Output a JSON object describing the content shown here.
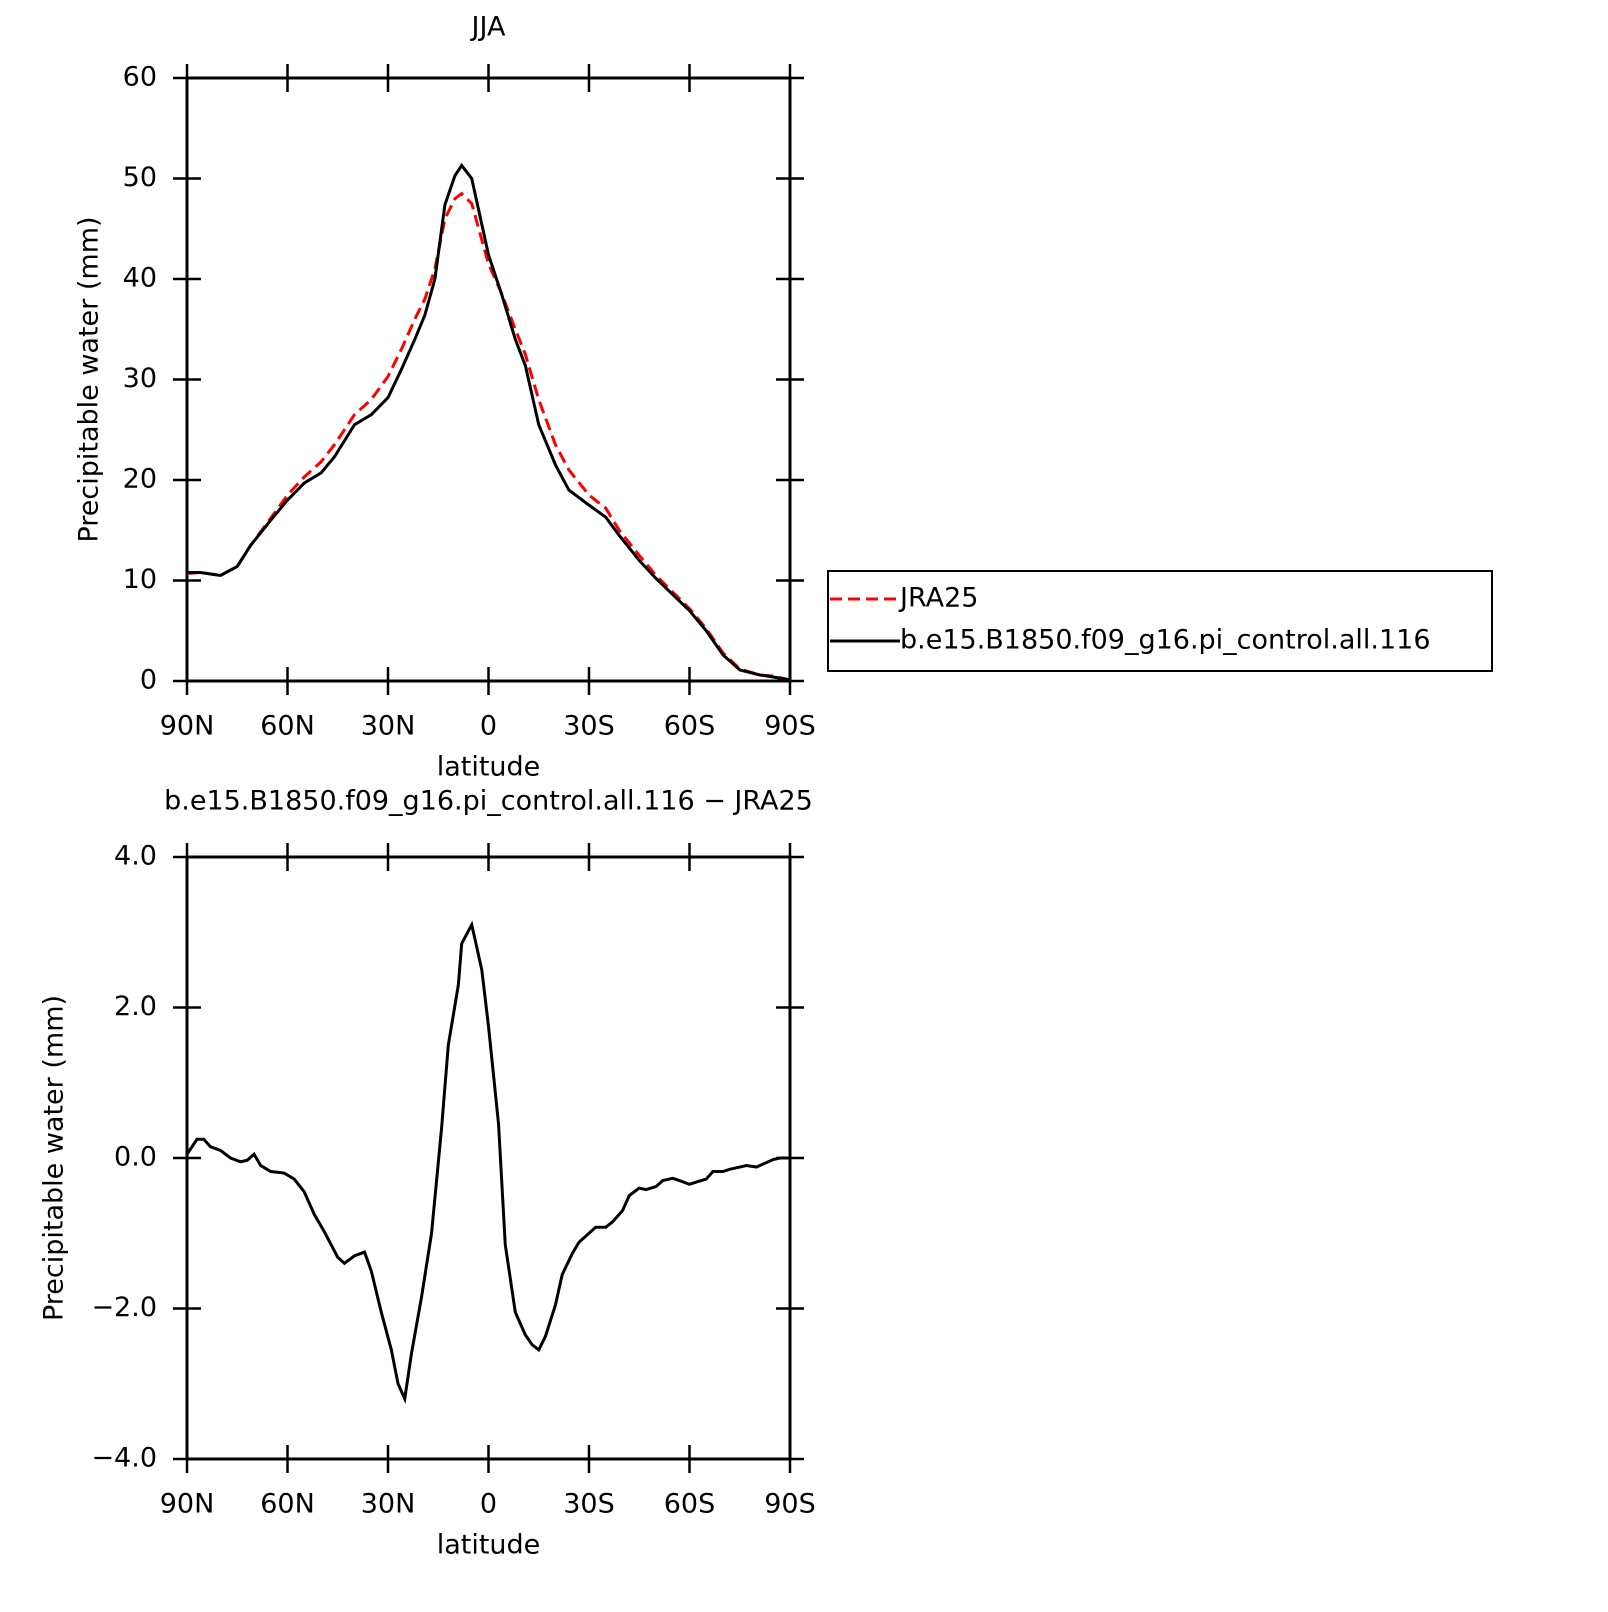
{
  "chart_data": [
    {
      "type": "line",
      "title": "JJA",
      "xlabel": "latitude",
      "ylabel": "Precipitable water (mm)",
      "x": [
        90,
        86,
        80,
        75,
        71,
        65,
        60,
        55,
        50,
        46,
        40,
        35,
        30,
        26,
        22,
        19,
        16,
        13,
        10,
        8,
        5,
        0,
        -4,
        -8,
        -11,
        -15,
        -20,
        -24,
        -30,
        -35,
        -39,
        -45,
        -50,
        -60,
        -65,
        -70,
        -75,
        -81,
        -85,
        -90
      ],
      "series": [
        {
          "name": "JRA25",
          "color": "#ff0000",
          "dashed": true,
          "values": [
            10.7,
            10.8,
            10.5,
            11.4,
            13.5,
            16.2,
            18.5,
            20.3,
            21.8,
            23.5,
            26.5,
            28,
            30.3,
            33,
            36,
            38,
            41,
            46,
            48,
            48.5,
            47.5,
            41.5,
            38.5,
            35,
            32.5,
            28,
            23.5,
            21,
            18.5,
            17.2,
            15,
            12.5,
            10.5,
            7.2,
            5.2,
            2.8,
            1.2,
            0.6,
            0.5,
            0.1
          ]
        },
        {
          "name": "b.e15.B1850.f09_g16.pi_control.all.116",
          "color": "#000000",
          "dashed": false,
          "values": [
            10.8,
            10.8,
            10.5,
            11.4,
            13.5,
            16,
            18,
            19.7,
            20.7,
            22.3,
            25.5,
            26.5,
            28.2,
            31,
            34,
            36.4,
            40,
            47.4,
            50.3,
            51.3,
            50,
            42.4,
            38.4,
            34,
            31.4,
            25.5,
            21.5,
            19,
            17.5,
            16.3,
            14.5,
            12,
            10.2,
            7,
            5,
            2.6,
            1.1,
            0.6,
            0.4,
            0.1
          ]
        }
      ],
      "xlim": [
        90,
        -90
      ],
      "xticks": [
        {
          "value": 90,
          "label": "90N"
        },
        {
          "value": 60,
          "label": "60N"
        },
        {
          "value": 30,
          "label": "30N"
        },
        0,
        {
          "value": -30,
          "label": "30S"
        },
        {
          "value": -60,
          "label": "60S"
        },
        {
          "value": -90,
          "label": "90S"
        }
      ],
      "ylim": [
        0,
        60
      ],
      "yticks": [
        0,
        10,
        20,
        30,
        40,
        50,
        60
      ],
      "legend": "outside-right"
    },
    {
      "type": "line",
      "title": "b.e15.B1850.f09_g16.pi_control.all.116 − JRA25",
      "xlabel": "latitude",
      "ylabel": "Precipitable water (mm)",
      "x": [
        90,
        87,
        85,
        83,
        80,
        77,
        74,
        72,
        70,
        68,
        65,
        61,
        58,
        55,
        52,
        49,
        45,
        43,
        40,
        37,
        35,
        32,
        29,
        27,
        25,
        23,
        20,
        17,
        14,
        12,
        9,
        8,
        5,
        2,
        0,
        -3,
        -5,
        -8,
        -11,
        -13,
        -15,
        -17,
        -20,
        -22,
        -25,
        -27,
        -30,
        -32,
        -35,
        -37,
        -40,
        -42,
        -45,
        -47,
        -50,
        -52,
        -55,
        -57,
        -60,
        -62,
        -65,
        -67,
        -70,
        -72,
        -75,
        -77,
        -80,
        -82,
        -85,
        -87,
        -90
      ],
      "values": [
        0.05,
        0.25,
        0.25,
        0.15,
        0.1,
        0.0,
        -0.05,
        -0.03,
        0.05,
        -0.1,
        -0.18,
        -0.2,
        -0.28,
        -0.45,
        -0.75,
        -0.98,
        -1.32,
        -1.4,
        -1.3,
        -1.25,
        -1.5,
        -2.05,
        -2.55,
        -3.0,
        -3.2,
        -2.6,
        -1.85,
        -1.0,
        0.4,
        1.5,
        2.3,
        2.85,
        3.1,
        2.5,
        1.75,
        0.45,
        -1.15,
        -2.05,
        -2.35,
        -2.48,
        -2.55,
        -2.37,
        -1.95,
        -1.55,
        -1.27,
        -1.12,
        -1.0,
        -0.92,
        -0.92,
        -0.85,
        -0.7,
        -0.5,
        -0.4,
        -0.42,
        -0.38,
        -0.3,
        -0.27,
        -0.3,
        -0.35,
        -0.32,
        -0.28,
        -0.18,
        -0.18,
        -0.15,
        -0.12,
        -0.1,
        -0.12,
        -0.08,
        -0.02,
        0.0,
        0.0
      ],
      "color": "#000000",
      "xlim": [
        90,
        -90
      ],
      "xticks": [
        {
          "value": 90,
          "label": "90N"
        },
        {
          "value": 60,
          "label": "60N"
        },
        {
          "value": 30,
          "label": "30N"
        },
        0,
        {
          "value": -30,
          "label": "30S"
        },
        {
          "value": -60,
          "label": "60S"
        },
        {
          "value": -90,
          "label": "90S"
        }
      ],
      "ylim": [
        -4,
        4
      ],
      "yticks": [
        {
          "value": -4,
          "label": "−4.0"
        },
        {
          "value": -2,
          "label": "−2.0"
        },
        {
          "value": 0,
          "label": "0.0"
        },
        {
          "value": 2,
          "label": "2.0"
        },
        {
          "value": 4,
          "label": "4.0"
        }
      ]
    }
  ]
}
